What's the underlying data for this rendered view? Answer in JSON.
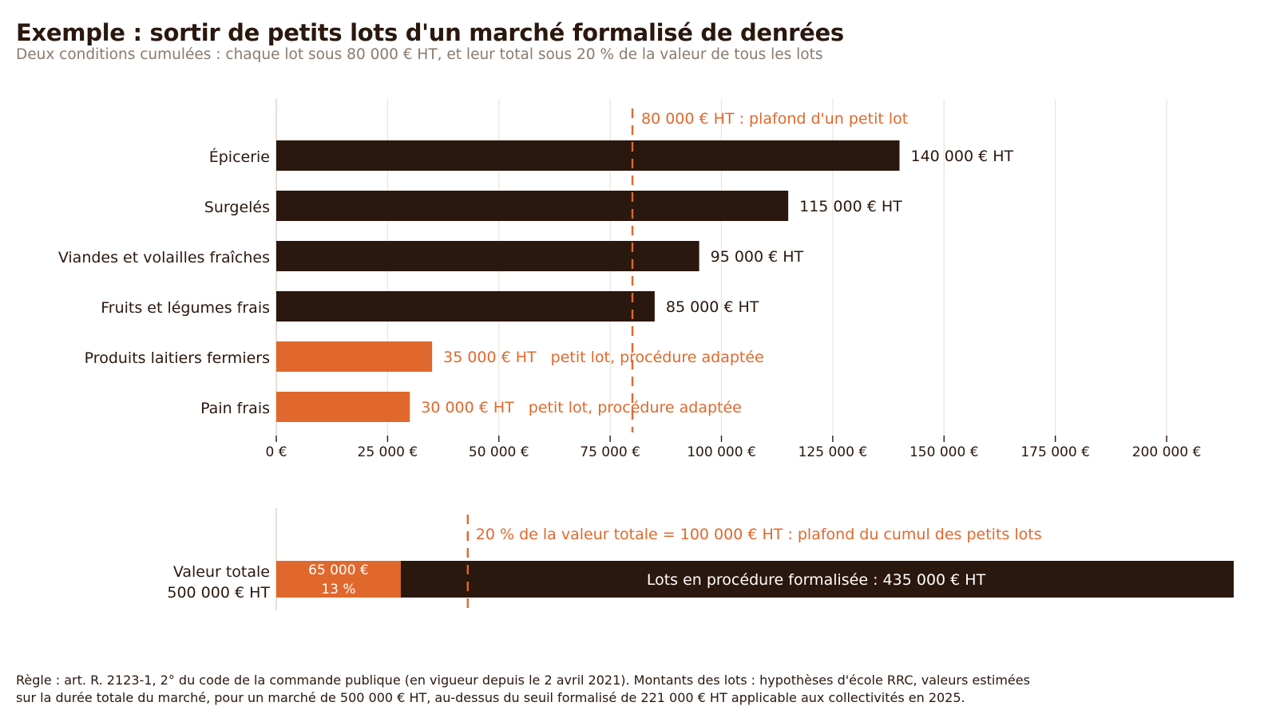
{
  "title": "Exemple : sortir de petits lots d'un marché formalisé de denrées",
  "subtitle": "Deux conditions cumulées : chaque lot sous 80 000 € HT, et leur total sous 20 % de la valeur de tous les lots",
  "footnote": [
    "Règle : art. R. 2123-1, 2° du code de la commande publique (en vigueur depuis le 2 avril 2021). Montants des lots : hypothèses d'école RRC, valeurs estimées",
    "sur la durée totale du marché, pour un marché de 500 000 € HT, au-dessus du seuil formalisé de 221 000 € HT applicable aux collectivités en 2025."
  ],
  "colors": {
    "dark": "#2a170d",
    "accent": "#e0682c",
    "grid": "#eee3d6",
    "muted": "#8a7a6e"
  },
  "chart_data": [
    {
      "type": "bar",
      "orientation": "horizontal",
      "categories": [
        "Épicerie",
        "Surgelés",
        "Viandes et volailles fraîches",
        "Fruits et légumes frais",
        "Produits laitiers fermiers",
        "Pain frais"
      ],
      "values": [
        140000,
        115000,
        95000,
        85000,
        35000,
        30000
      ],
      "value_labels": [
        "140 000 € HT",
        "115 000 € HT",
        "95 000 € HT",
        "85 000 € HT",
        "35 000 € HT",
        "30 000 € HT"
      ],
      "annotations": [
        "",
        "",
        "",
        "",
        "petit lot, procédure adaptée",
        "petit lot, procédure adaptée"
      ],
      "highlight": [
        false,
        false,
        false,
        false,
        true,
        true
      ],
      "xlim": [
        0,
        200000
      ],
      "ticks": [
        0,
        25000,
        50000,
        75000,
        100000,
        125000,
        150000,
        175000,
        200000
      ],
      "tick_labels": [
        "0 €",
        "25 000 €",
        "50 000 €",
        "75 000 €",
        "100 000 €",
        "125 000 €",
        "150 000 €",
        "175 000 €",
        "200 000 €"
      ],
      "threshold": {
        "value": 80000,
        "label": "80 000 € HT : plafond d'un petit lot"
      },
      "grid": true
    },
    {
      "type": "bar",
      "orientation": "horizontal-stacked",
      "category_lines": [
        "Valeur totale",
        "500 000 € HT"
      ],
      "total": 500000,
      "segments": [
        {
          "value": 65000,
          "label_lines": [
            "65 000 €",
            "13 %"
          ],
          "highlight": true
        },
        {
          "value": 435000,
          "label_lines": [
            "Lots en procédure formalisée : 435 000 € HT"
          ],
          "highlight": false
        }
      ],
      "threshold": {
        "value": 100000,
        "label": "20 % de la valeur totale = 100 000 € HT : plafond du cumul des petits lots"
      }
    }
  ]
}
